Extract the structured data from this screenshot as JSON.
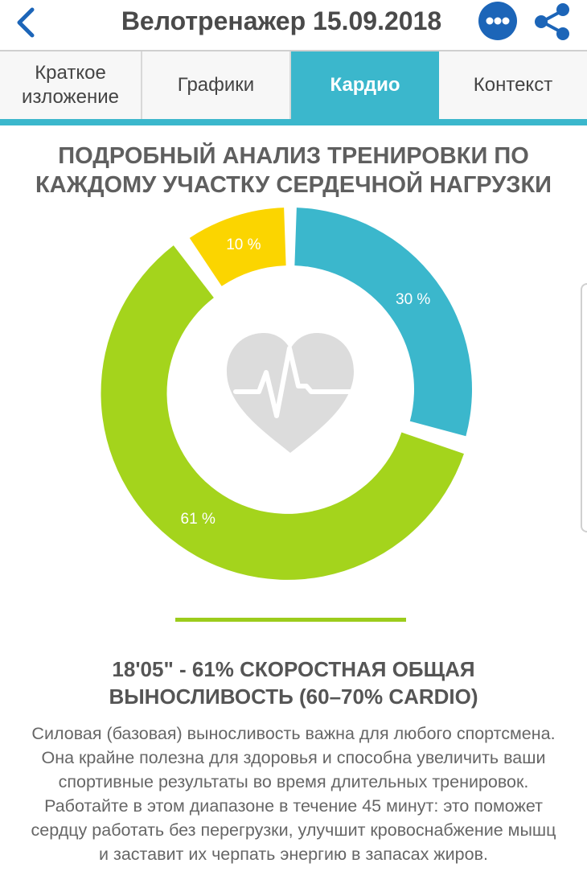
{
  "header": {
    "title": "Велотренажер 15.09.2018",
    "back_icon": "chevron-left-icon",
    "more_icon": "more-horizontal-icon",
    "share_icon": "share-icon",
    "accent_color": "#1c65b8"
  },
  "tabs": [
    {
      "label": "Краткое изложение",
      "active": false
    },
    {
      "label": "Графики",
      "active": false
    },
    {
      "label": "Кардио",
      "active": true
    },
    {
      "label": "Контекст",
      "active": false
    }
  ],
  "tab_color": "#3bb7cc",
  "main": {
    "heading": "ПОДРОБНЫЙ АНАЛИЗ ТРЕНИРОВКИ ПО КАЖДОМУ УЧАСТКУ СЕРДЕЧНОЙ НАГРУЗКИ",
    "center_icon": "heart-pulse-icon",
    "zone_title": "18'05\" - 61% СКОРОСТНАЯ ОБЩАЯ ВЫНОСЛИВОСТЬ (60–70% CARDIO)",
    "zone_description": "Силовая (базовая) выносливость важна для любого спортсмена. Она крайне полезна для здоровья и способна увеличить ваши спортивные результаты во время длительных тренировок. Работайте в этом диапазоне в течение 45 минут: это поможет сердцу работать без перегрузки, улучшит кровоснабжение мышц и заставит их черпать энергию в запасах жиров."
  },
  "chart_data": {
    "type": "pie",
    "variant": "donut",
    "slices": [
      {
        "label": "30 %",
        "value": 30,
        "color": "#3bb7cc"
      },
      {
        "label": "61 %",
        "value": 61,
        "color": "#a4d41c"
      },
      {
        "label": "10 %",
        "value": 10,
        "color": "#fbd500"
      }
    ],
    "selected": "61 %"
  }
}
